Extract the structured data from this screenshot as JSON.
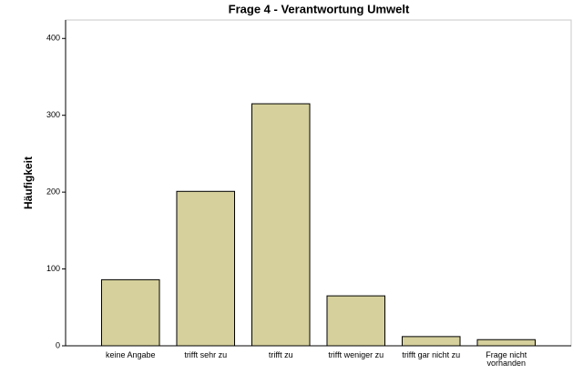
{
  "chart_data": {
    "type": "bar",
    "title": "Frage 4 - Verantwortung Umwelt",
    "y_label": "Häufigkeit",
    "categories": [
      "keine Angabe",
      "trifft sehr zu",
      "trifft zu",
      "trifft weniger zu",
      "trifft gar nicht zu",
      "Frage nicht vorhanden"
    ],
    "values": [
      86,
      201,
      315,
      65,
      12,
      8
    ],
    "color": "#d5d09c",
    "ylim": [
      0,
      424
    ],
    "yticks": [
      0,
      100,
      200,
      300,
      400
    ],
    "grid": false
  }
}
